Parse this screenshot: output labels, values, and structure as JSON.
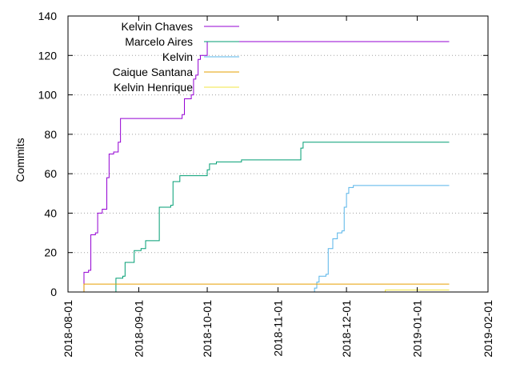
{
  "chart_data": {
    "type": "line",
    "title": "",
    "xlabel": "",
    "ylabel": "Commits",
    "x_axis": {
      "type": "date",
      "range": [
        "2018-08-01",
        "2019-02-01"
      ],
      "ticks": [
        "2018-08-01",
        "2018-09-01",
        "2018-10-01",
        "2018-11-01",
        "2018-12-01",
        "2019-01-01",
        "2019-02-01"
      ]
    },
    "y_axis": {
      "range": [
        0,
        140
      ],
      "ticks": [
        0,
        20,
        40,
        60,
        80,
        100,
        120,
        140
      ]
    },
    "grid": true,
    "legend_position": "top-left",
    "series": [
      {
        "name": "Kelvin Chaves",
        "color": "#9400d3",
        "points": [
          [
            "2018-08-07",
            0
          ],
          [
            "2018-08-08",
            10
          ],
          [
            "2018-08-10",
            11
          ],
          [
            "2018-08-11",
            29
          ],
          [
            "2018-08-13",
            30
          ],
          [
            "2018-08-14",
            40
          ],
          [
            "2018-08-16",
            42
          ],
          [
            "2018-08-18",
            58
          ],
          [
            "2018-08-19",
            70
          ],
          [
            "2018-08-21",
            71
          ],
          [
            "2018-08-23",
            76
          ],
          [
            "2018-08-24",
            88
          ],
          [
            "2018-09-18",
            88
          ],
          [
            "2018-09-20",
            90
          ],
          [
            "2018-09-21",
            98
          ],
          [
            "2018-09-24",
            100
          ],
          [
            "2018-09-25",
            108
          ],
          [
            "2018-09-26",
            110
          ],
          [
            "2018-09-27",
            118
          ],
          [
            "2018-09-28",
            120
          ],
          [
            "2018-10-01",
            127
          ],
          [
            "2019-01-15",
            127
          ]
        ]
      },
      {
        "name": "Marcelo Aires",
        "color": "#009e73",
        "points": [
          [
            "2018-08-21",
            0
          ],
          [
            "2018-08-22",
            7
          ],
          [
            "2018-08-25",
            8
          ],
          [
            "2018-08-26",
            15
          ],
          [
            "2018-08-29",
            15
          ],
          [
            "2018-08-30",
            21
          ],
          [
            "2018-09-02",
            22
          ],
          [
            "2018-09-04",
            26
          ],
          [
            "2018-09-09",
            26
          ],
          [
            "2018-09-10",
            43
          ],
          [
            "2018-09-15",
            44
          ],
          [
            "2018-09-16",
            56
          ],
          [
            "2018-09-18",
            56
          ],
          [
            "2018-09-19",
            59
          ],
          [
            "2018-09-30",
            59
          ],
          [
            "2018-10-01",
            62
          ],
          [
            "2018-10-02",
            65
          ],
          [
            "2018-10-05",
            66
          ],
          [
            "2018-10-15",
            66
          ],
          [
            "2018-10-16",
            67
          ],
          [
            "2018-11-10",
            67
          ],
          [
            "2018-11-11",
            73
          ],
          [
            "2018-11-12",
            76
          ],
          [
            "2019-01-15",
            76
          ]
        ]
      },
      {
        "name": "Kelvin",
        "color": "#56b4e9",
        "points": [
          [
            "2018-11-16",
            0
          ],
          [
            "2018-11-17",
            2
          ],
          [
            "2018-11-18",
            5
          ],
          [
            "2018-11-19",
            8
          ],
          [
            "2018-11-22",
            9
          ],
          [
            "2018-11-23",
            22
          ],
          [
            "2018-11-25",
            27
          ],
          [
            "2018-11-27",
            30
          ],
          [
            "2018-11-29",
            31
          ],
          [
            "2018-11-30",
            43
          ],
          [
            "2018-12-01",
            50
          ],
          [
            "2018-12-02",
            53
          ],
          [
            "2018-12-04",
            54
          ],
          [
            "2019-01-15",
            54
          ]
        ]
      },
      {
        "name": "Caique Santana",
        "color": "#e69f00",
        "points": [
          [
            "2018-08-07",
            0
          ],
          [
            "2018-08-08",
            4
          ],
          [
            "2019-01-15",
            4
          ]
        ]
      },
      {
        "name": "Kelvin Henrique",
        "color": "#f0e442",
        "points": [
          [
            "2018-12-14",
            0
          ],
          [
            "2018-12-18",
            1
          ],
          [
            "2019-01-15",
            1
          ]
        ]
      }
    ]
  }
}
